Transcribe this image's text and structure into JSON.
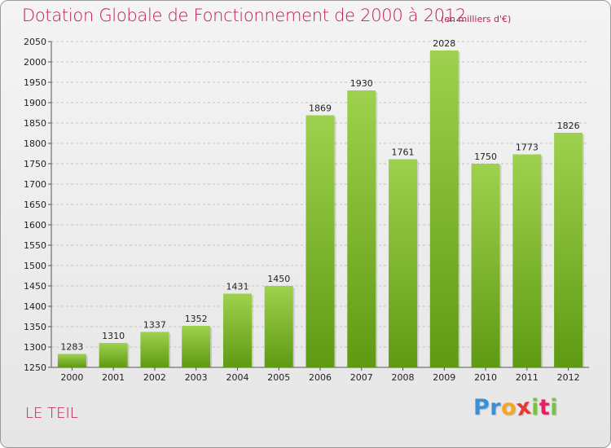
{
  "header": {
    "title": "Dotation Globale de Fonctionnement de 2000 à 2012",
    "unit": "(en milliers d'€)"
  },
  "footer": {
    "commune": "LE TEIL",
    "logo_letters": [
      "P",
      "r",
      "o",
      "x",
      "i",
      "t",
      "i"
    ],
    "logo_colors": [
      "#3b8fd4",
      "#3b8fd4",
      "#f5a623",
      "#e53935",
      "#7cc242",
      "#e91e63",
      "#7cc242"
    ]
  },
  "colors": {
    "bar_top": "#9ed14e",
    "bar_bottom": "#5f9a14",
    "accent": "#c2185b"
  },
  "chart_data": {
    "type": "bar",
    "title": "Dotation Globale de Fonctionnement de 2000 à 2012",
    "xlabel": "",
    "ylabel": "",
    "categories": [
      "2000",
      "2001",
      "2002",
      "2003",
      "2004",
      "2005",
      "2006",
      "2007",
      "2008",
      "2009",
      "2010",
      "2011",
      "2012"
    ],
    "values": [
      1283,
      1310,
      1337,
      1352,
      1431,
      1450,
      1869,
      1930,
      1761,
      2028,
      1750,
      1773,
      1826
    ],
    "ylim": [
      1250,
      2050
    ],
    "yticks": [
      1250,
      1300,
      1350,
      1400,
      1450,
      1500,
      1550,
      1600,
      1650,
      1700,
      1750,
      1800,
      1850,
      1900,
      1950,
      2000,
      2050
    ],
    "grid": true,
    "data_labels": true
  }
}
